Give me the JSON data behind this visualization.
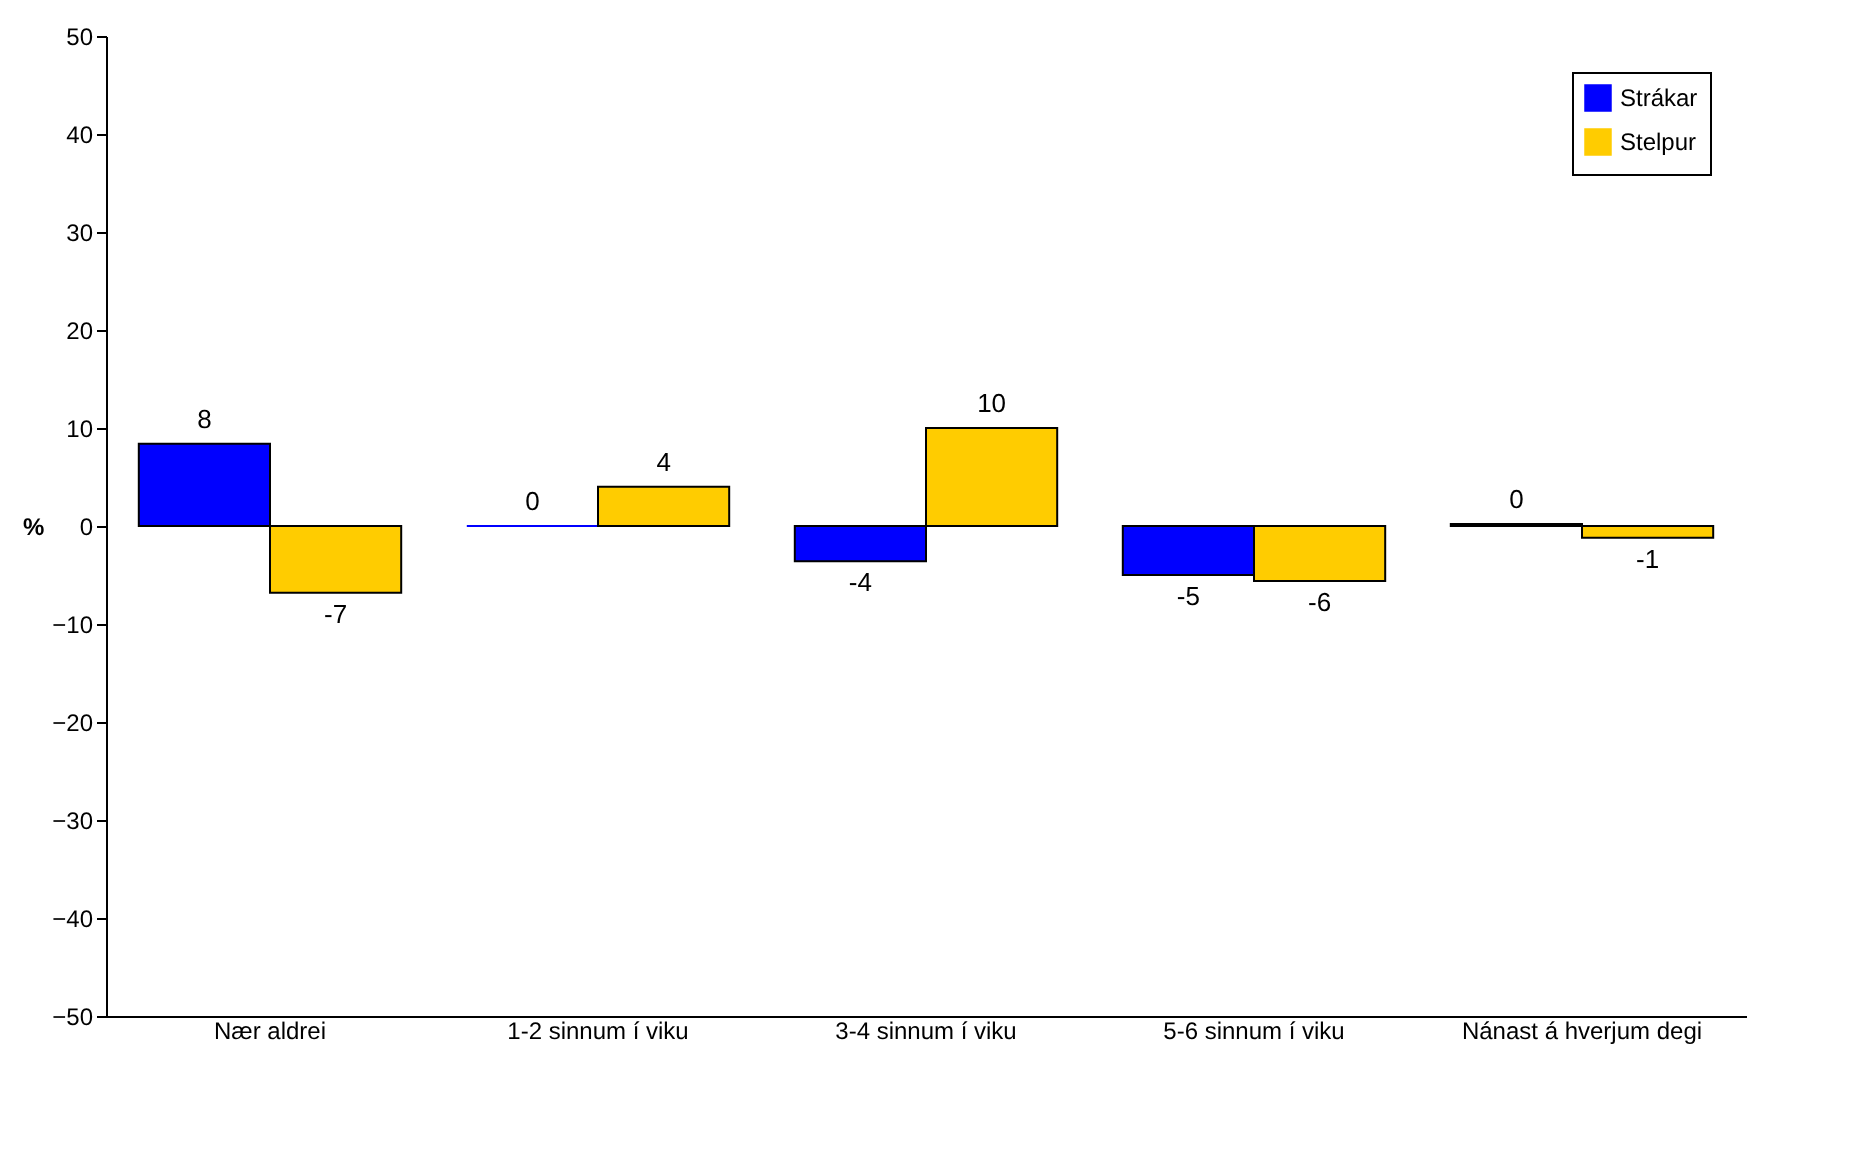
{
  "chart_data": {
    "type": "bar",
    "ylabel": "%",
    "categories": [
      "Nær aldrei",
      "1-2 sinnum í viku",
      "3-4 sinnum í viku",
      "5-6 sinnum í viku",
      "Nánast á hverjum degi"
    ],
    "series": [
      {
        "name": "Strákar",
        "color": "#0000ff",
        "values": [
          8.4,
          0,
          -3.6,
          -5,
          0.2
        ],
        "value_labels": [
          "8",
          "0",
          "-4",
          "-5",
          "0"
        ]
      },
      {
        "name": "Stelpur",
        "color": "#ffcc00",
        "values": [
          -6.8,
          4,
          10,
          -5.6,
          -1.2
        ],
        "value_labels": [
          "-7",
          "4",
          "10",
          "-6",
          "-1"
        ]
      }
    ],
    "ylim": [
      -50,
      50
    ],
    "yticks": [
      -50,
      -40,
      -30,
      -20,
      -10,
      0,
      10,
      20,
      30,
      40,
      50
    ],
    "grid": false,
    "legend": "top right"
  }
}
